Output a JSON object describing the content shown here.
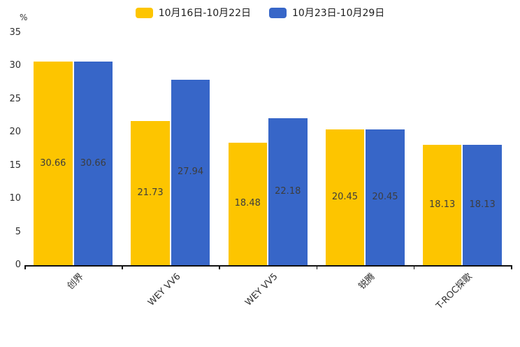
{
  "chart_data": {
    "type": "bar",
    "title": "",
    "ylabel": "%",
    "xlabel": "",
    "ylim": [
      0,
      35
    ],
    "yticks": [
      0,
      5,
      10,
      15,
      20,
      25,
      30,
      35
    ],
    "grid": false,
    "legend_position": "top",
    "categories": [
      "创界",
      "WEY VV6",
      "WEY VV5",
      "锐腾",
      "T-ROC探歌"
    ],
    "series": [
      {
        "name": "10月16日-10月22日",
        "color": "#FDC500",
        "values": [
          30.66,
          21.73,
          18.48,
          20.45,
          18.13
        ]
      },
      {
        "name": "10月23日-10月29日",
        "color": "#3766C8",
        "values": [
          30.66,
          27.94,
          22.18,
          20.45,
          18.13
        ]
      }
    ],
    "bar_label_color": "#3d3d3d",
    "axis_color": "#111111",
    "tick_label_color": "#2e2e2e"
  }
}
